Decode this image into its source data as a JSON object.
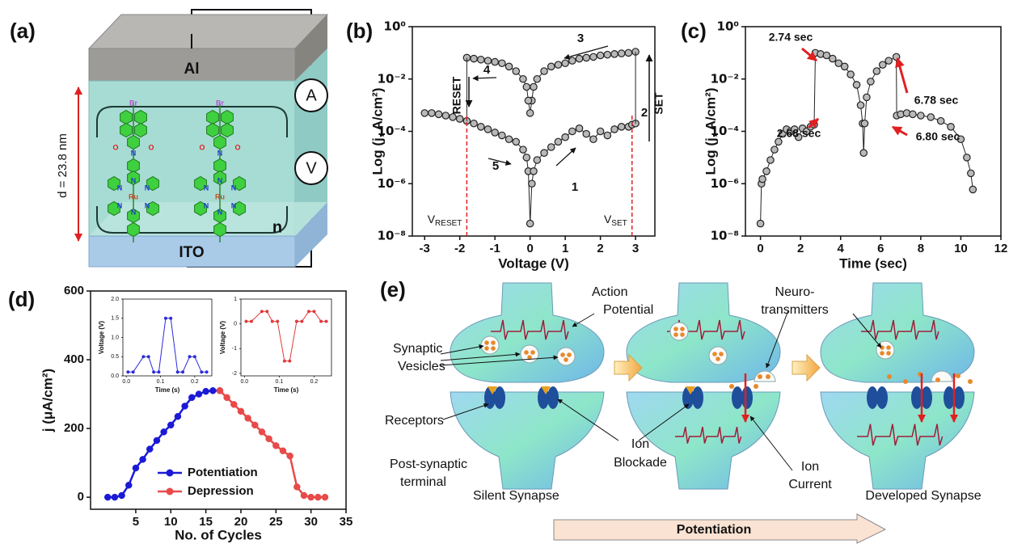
{
  "device": {
    "panel_label": "(a)",
    "top_electrode": "Al",
    "bottom_electrode": "ITO",
    "thickness": "d = 23.8 nm",
    "ammeter": "A",
    "voltmeter": "V",
    "repeat": "n",
    "molecule_atoms": [
      "Br",
      "O",
      "N",
      "O",
      "N",
      "N",
      "N",
      "Ru",
      "N",
      "N",
      "N"
    ]
  },
  "chart_data": [
    {
      "type": "scatter",
      "panel_label": "(b)",
      "xlabel": "Voltage (V)",
      "ylabel": "Log (j, A/cm²)",
      "xlim": [
        -3.35,
        3.55
      ],
      "xticks": [
        -3,
        -2,
        -1,
        0,
        1,
        2,
        3
      ],
      "ylim": [
        1e-08,
        1
      ],
      "yscale": "log",
      "yticks": [
        {
          "value": 1e-08,
          "label": "10⁻⁸"
        },
        {
          "value": 1e-06,
          "label": "10⁻⁶"
        },
        {
          "value": 0.0001,
          "label": "10⁻⁴"
        },
        {
          "value": 0.01,
          "label": "10⁻²"
        },
        {
          "value": 1,
          "label": "10⁰"
        }
      ],
      "series": [
        {
          "color": "#222222",
          "x": [
            -3,
            -2.8,
            -2.6,
            -2.4,
            -2.2,
            -2,
            -1.8,
            -1.6,
            -1.4,
            -1.2,
            -1,
            -0.8,
            -0.6,
            -0.4,
            -0.2,
            -0.1,
            -0.05,
            0,
            0.05,
            0.1,
            0.2,
            0.4,
            0.6,
            0.8,
            1,
            1.2,
            1.4,
            1.6,
            1.8,
            2,
            2.2,
            2.4,
            2.6,
            2.8,
            2.9,
            3
          ],
          "values": [
            0.0005,
            0.0005,
            0.00045,
            0.0004,
            0.00035,
            0.0003,
            0.00025,
            0.0002,
            0.00015,
            0.00012,
            9e-05,
            7e-05,
            5e-05,
            4e-05,
            2e-05,
            1e-05,
            3e-06,
            3e-08,
            1e-06,
            3e-06,
            8e-06,
            1.5e-05,
            2.5e-05,
            4e-05,
            6e-05,
            0.0001,
            0.00013,
            8e-05,
            5e-05,
            0.0001,
            7e-05,
            0.00012,
            0.00015,
            0.00015,
            0.00018,
            0.0002
          ]
        },
        {
          "color": "#222222",
          "x": [
            3,
            2.8,
            2.6,
            2.4,
            2.2,
            2,
            1.8,
            1.6,
            1.4,
            1.2,
            1,
            0.8,
            0.6,
            0.4,
            0.2,
            0.1,
            0.05,
            0,
            -0.05,
            -0.1,
            -0.2,
            -0.4,
            -0.6,
            -0.8,
            -1,
            -1.2,
            -1.4,
            -1.6,
            -1.8
          ],
          "values": [
            0.11,
            0.1,
            0.095,
            0.09,
            0.085,
            0.08,
            0.07,
            0.065,
            0.06,
            0.05,
            0.04,
            0.035,
            0.03,
            0.02,
            0.01,
            0.005,
            0.0015,
            0.0005,
            0.0015,
            0.005,
            0.01,
            0.02,
            0.03,
            0.04,
            0.045,
            0.05,
            0.055,
            0.06,
            0.065
          ]
        }
      ],
      "vlines": [
        {
          "value": -1.8,
          "color": "#e02020",
          "label": "V",
          "sub": "RESET"
        },
        {
          "value": 2.9,
          "color": "#e02020",
          "label": "V",
          "sub": "SET"
        }
      ],
      "annotations": [
        "1",
        "2",
        "3",
        "4",
        "5",
        "RESET",
        "SET"
      ]
    },
    {
      "type": "scatter",
      "panel_label": "(c)",
      "xlabel": "Time (sec)",
      "ylabel": "Log (j, A/cm²)",
      "xlim": [
        -0.75,
        12
      ],
      "xticks": [
        0,
        2,
        4,
        6,
        8,
        10,
        12
      ],
      "ylim": [
        1e-08,
        1
      ],
      "yscale": "log",
      "yticks": [
        {
          "value": 1e-08,
          "label": "10⁻⁸"
        },
        {
          "value": 1e-06,
          "label": "10⁻⁶"
        },
        {
          "value": 0.0001,
          "label": "10⁻⁴"
        },
        {
          "value": 0.01,
          "label": "10⁻²"
        },
        {
          "value": 1,
          "label": "10⁰"
        }
      ],
      "series": [
        {
          "color": "#222222",
          "x": [
            0,
            0.05,
            0.1,
            0.3,
            0.5,
            0.7,
            0.9,
            1.1,
            1.3,
            1.5,
            1.7,
            1.9,
            2.1,
            2.3,
            2.5,
            2.68,
            2.74,
            3,
            3.3,
            3.6,
            3.9,
            4.2,
            4.5,
            4.8,
            5,
            5.1,
            5.15,
            5.2,
            5.3,
            5.5,
            5.8,
            6.1,
            6.4,
            6.78,
            6.8,
            7,
            7.3,
            7.6,
            8,
            8.5,
            9,
            9.5,
            10,
            10.3,
            10.5,
            10.6
          ],
          "values": [
            3e-08,
            1e-06,
            1.5e-06,
            3e-06,
            8e-06,
            2e-05,
            4e-05,
            8e-05,
            0.00012,
            0.0001,
            0.00012,
            6e-05,
            0.00013,
            0.0001,
            0.00015,
            0.00018,
            0.1,
            0.09,
            0.08,
            0.06,
            0.04,
            0.03,
            0.015,
            0.006,
            0.001,
            0.0002,
            1.5e-05,
            0.0002,
            0.002,
            0.008,
            0.02,
            0.035,
            0.05,
            0.07,
            0.0004,
            0.00045,
            0.0005,
            0.00045,
            0.0004,
            0.00035,
            0.00025,
            0.00015,
            5e-05,
            1e-05,
            2.5e-06,
            6e-07
          ]
        }
      ],
      "annotation_color": "#e02020",
      "annotations": [
        "2.74 sec",
        "6.78 sec",
        "2.68 sec",
        "6.80 sec"
      ]
    },
    {
      "type": "line",
      "panel_label": "(d)",
      "xlabel": "No. of Cycles",
      "ylabel": "j (μA/cm²)",
      "xlim": [
        -1.45,
        35
      ],
      "xticks": [
        5,
        10,
        15,
        20,
        25,
        30,
        35
      ],
      "ylim": [
        -35,
        600
      ],
      "yticks": [
        0,
        200,
        400,
        600
      ],
      "legend": "lower left",
      "series": [
        {
          "name": "Potentiation",
          "color": "#1a1ad6",
          "x": [
            1,
            2,
            3,
            4,
            5,
            6,
            7,
            8,
            9,
            10,
            11,
            12,
            13,
            14,
            15,
            16,
            17
          ],
          "values": [
            0,
            0,
            5,
            35,
            85,
            110,
            140,
            165,
            190,
            210,
            235,
            265,
            290,
            300,
            308,
            310,
            310
          ]
        },
        {
          "name": "Depression",
          "color": "#e84a4a",
          "x": [
            17,
            18,
            19,
            20,
            21,
            22,
            23,
            24,
            25,
            26,
            27,
            28,
            29,
            30,
            31,
            32
          ],
          "values": [
            310,
            290,
            270,
            250,
            230,
            210,
            190,
            170,
            150,
            135,
            120,
            30,
            5,
            0,
            0,
            0
          ]
        }
      ]
    },
    {
      "type": "line",
      "xlabel": "Time (s)",
      "ylabel": "Voltage (V)",
      "xlim": [
        -0.01,
        0.25
      ],
      "xticks": [
        {
          "value": 0,
          "label": "0.0"
        },
        {
          "value": 0.1,
          "label": "0.1"
        },
        {
          "value": 0.2,
          "label": "0.2"
        }
      ],
      "ylim": [
        0,
        2
      ],
      "yticks": [
        {
          "value": 0,
          "label": "0.0"
        },
        {
          "value": 0.5,
          "label": "0.5"
        },
        {
          "value": 1,
          "label": "1.0"
        },
        {
          "value": 1.5,
          "label": "1.5"
        },
        {
          "value": 2,
          "label": "2.0"
        }
      ],
      "series": [
        {
          "color": "#2b2bd8",
          "x": [
            0.005,
            0.02,
            0.05,
            0.065,
            0.08,
            0.095,
            0.115,
            0.13,
            0.15,
            0.165,
            0.185,
            0.2,
            0.22,
            0.235
          ],
          "values": [
            0.1,
            0.1,
            0.5,
            0.5,
            0.1,
            0.1,
            1.5,
            1.5,
            0.1,
            0.1,
            0.5,
            0.5,
            0.1,
            0.1
          ]
        }
      ]
    },
    {
      "type": "line",
      "xlabel": "Time (s)",
      "ylabel": "Voltage (V)",
      "xlim": [
        -0.01,
        0.25
      ],
      "xticks": [
        {
          "value": 0,
          "label": "0.0"
        },
        {
          "value": 0.1,
          "label": "0.1"
        },
        {
          "value": 0.2,
          "label": "0.2"
        }
      ],
      "ylim": [
        -2.1,
        1
      ],
      "yticks": [
        -2,
        -1,
        0,
        1
      ],
      "series": [
        {
          "color": "#e03a3a",
          "x": [
            0.005,
            0.02,
            0.05,
            0.065,
            0.08,
            0.095,
            0.115,
            0.13,
            0.15,
            0.165,
            0.185,
            0.2,
            0.22,
            0.235
          ],
          "values": [
            0.1,
            0.1,
            0.5,
            0.5,
            0.1,
            0.1,
            -1.5,
            -1.5,
            0.1,
            0.1,
            0.5,
            0.5,
            0.1,
            0.1
          ]
        }
      ]
    }
  ],
  "synapse": {
    "panel_label": "(e)",
    "action_potential": [
      "Action",
      "Potential"
    ],
    "neurotransmitters": [
      "Neuro-",
      "transmitters"
    ],
    "vesicles": [
      "Synaptic",
      "Vesicles"
    ],
    "receptors": "Receptors",
    "ion_blockade": [
      "Ion",
      "Blockade"
    ],
    "ion_current": [
      "Ion",
      "Current"
    ],
    "post_synaptic": [
      "Post-synaptic",
      "terminal"
    ],
    "silent": "Silent Synapse",
    "developed": "Developed Synapse",
    "arrow": "Potentiation"
  }
}
